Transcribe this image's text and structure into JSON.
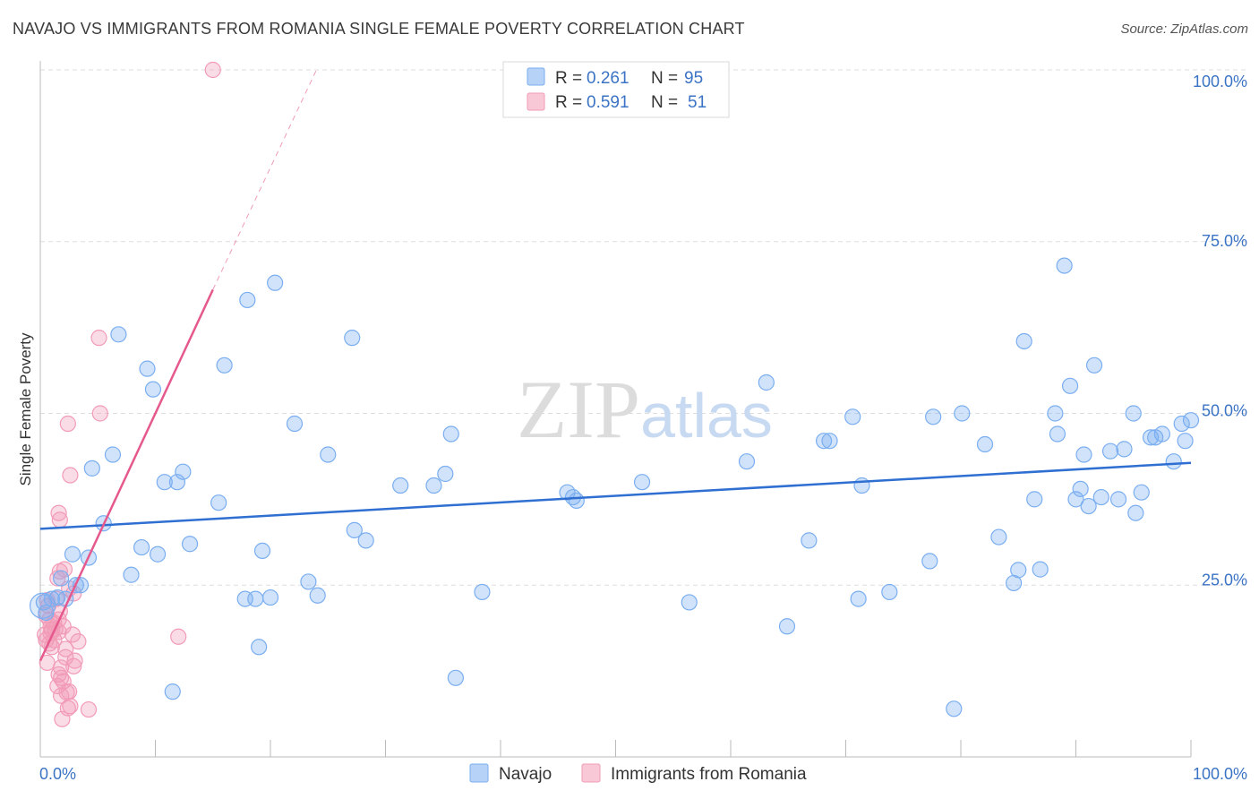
{
  "title": "NAVAJO VS IMMIGRANTS FROM ROMANIA SINGLE FEMALE POVERTY CORRELATION CHART",
  "source": "Source: ZipAtlas.com",
  "watermark": "ZIPatlas",
  "chart_data": {
    "type": "scatter",
    "ylabel": "Single Female Poverty",
    "xlim": [
      0,
      100
    ],
    "ylim": [
      0,
      100
    ],
    "x_tick_labels": [
      "0.0%",
      "100.0%"
    ],
    "y_tick_labels": [
      "25.0%",
      "50.0%",
      "75.0%",
      "100.0%"
    ],
    "y_ticks": [
      25,
      50,
      75,
      100
    ],
    "colors": {
      "navajo": "#7aaef0",
      "romania": "#f29bb6",
      "navajo_line": "#2e6fd1",
      "romania_line": "#e5598d"
    },
    "legend": {
      "navajo": {
        "name": "Navajo",
        "r_label": "R =",
        "r": "0.261",
        "n_label": "N =",
        "n": "95"
      },
      "romania": {
        "name": "Immigrants from Romania",
        "r_label": "R =",
        "r": "0.591",
        "n_label": "N =",
        "n": "51"
      }
    },
    "series": [
      {
        "name": "Navajo",
        "trend": {
          "x": [
            0,
            100
          ],
          "y": [
            33.2,
            42.8
          ]
        },
        "points": [
          [
            0.3,
            22.5
          ],
          [
            0.5,
            21
          ],
          [
            1,
            23
          ],
          [
            1.5,
            23.2
          ],
          [
            1.8,
            26
          ],
          [
            2.2,
            23
          ],
          [
            2.8,
            29.5
          ],
          [
            3.1,
            25
          ],
          [
            3.5,
            25
          ],
          [
            4.2,
            29
          ],
          [
            4.5,
            42
          ],
          [
            5.5,
            34
          ],
          [
            6.3,
            44
          ],
          [
            6.8,
            61.5
          ],
          [
            7.9,
            26.5
          ],
          [
            8.8,
            30.5
          ],
          [
            9.3,
            56.5
          ],
          [
            9.8,
            53.5
          ],
          [
            10.2,
            29.5
          ],
          [
            10.8,
            40
          ],
          [
            11.5,
            9.5
          ],
          [
            11.9,
            40
          ],
          [
            12.4,
            41.5
          ],
          [
            13,
            31
          ],
          [
            15.5,
            37
          ],
          [
            16,
            57
          ],
          [
            17.8,
            23
          ],
          [
            18,
            66.5
          ],
          [
            18.7,
            23
          ],
          [
            19,
            16
          ],
          [
            19.3,
            30
          ],
          [
            20,
            23.2
          ],
          [
            20.4,
            69
          ],
          [
            22.1,
            48.5
          ],
          [
            23.3,
            25.5
          ],
          [
            24.1,
            23.5
          ],
          [
            25,
            44
          ],
          [
            27.1,
            61
          ],
          [
            27.3,
            33
          ],
          [
            28.3,
            31.5
          ],
          [
            31.3,
            39.5
          ],
          [
            34.2,
            39.5
          ],
          [
            35.2,
            41.2
          ],
          [
            35.7,
            47
          ],
          [
            36.1,
            11.5
          ],
          [
            38.4,
            24
          ],
          [
            45.8,
            38.5
          ],
          [
            46.3,
            37.8
          ],
          [
            46.6,
            37.3
          ],
          [
            52.3,
            40
          ],
          [
            56.4,
            22.5
          ],
          [
            61.4,
            43
          ],
          [
            63.1,
            54.5
          ],
          [
            64.9,
            19
          ],
          [
            66.8,
            31.5
          ],
          [
            68.1,
            46
          ],
          [
            68.6,
            46
          ],
          [
            70.6,
            49.5
          ],
          [
            71.1,
            23
          ],
          [
            71.4,
            39.5
          ],
          [
            73.8,
            24
          ],
          [
            77.3,
            28.5
          ],
          [
            77.6,
            49.5
          ],
          [
            79.4,
            7
          ],
          [
            80.1,
            50
          ],
          [
            82.1,
            45.5
          ],
          [
            83.3,
            32
          ],
          [
            84.6,
            25.3
          ],
          [
            85,
            27.2
          ],
          [
            85.5,
            60.5
          ],
          [
            86.4,
            37.5
          ],
          [
            86.9,
            27.3
          ],
          [
            88.2,
            50
          ],
          [
            88.4,
            47
          ],
          [
            89,
            71.5
          ],
          [
            89.5,
            54
          ],
          [
            90,
            37.5
          ],
          [
            90.4,
            39
          ],
          [
            90.7,
            44
          ],
          [
            91.1,
            36.5
          ],
          [
            91.6,
            57
          ],
          [
            92.2,
            37.8
          ],
          [
            93,
            44.5
          ],
          [
            93.7,
            37.5
          ],
          [
            94.2,
            44.8
          ],
          [
            95,
            50
          ],
          [
            95.2,
            35.5
          ],
          [
            95.7,
            38.5
          ],
          [
            96.5,
            46.5
          ],
          [
            96.9,
            46.5
          ],
          [
            97.5,
            47
          ],
          [
            98.5,
            43
          ],
          [
            99.2,
            48.5
          ],
          [
            99.5,
            46
          ],
          [
            100,
            49
          ]
        ]
      },
      {
        "name": "Immigrants from Romania",
        "trend": {
          "x": [
            0,
            15
          ],
          "y": [
            14,
            68
          ]
        },
        "trend_ext": {
          "x": [
            15,
            24
          ],
          "y": [
            68,
            100
          ]
        },
        "points": [
          [
            15,
            100
          ],
          [
            5.1,
            61
          ],
          [
            5.2,
            50
          ],
          [
            2.4,
            48.5
          ],
          [
            2.6,
            41
          ],
          [
            1.6,
            35.5
          ],
          [
            1.7,
            34.5
          ],
          [
            1.7,
            27
          ],
          [
            2.1,
            27.3
          ],
          [
            1.5,
            26
          ],
          [
            2.9,
            23.8
          ],
          [
            2.5,
            24.5
          ],
          [
            1.4,
            23
          ],
          [
            0.6,
            22.8
          ],
          [
            0.7,
            22
          ],
          [
            1.7,
            21.2
          ],
          [
            0.5,
            20.6
          ],
          [
            0.8,
            20
          ],
          [
            1.6,
            20
          ],
          [
            2,
            19
          ],
          [
            1.2,
            19.5
          ],
          [
            0.9,
            19
          ],
          [
            1.3,
            18.6
          ],
          [
            1.6,
            18.2
          ],
          [
            0.9,
            18
          ],
          [
            1,
            18.5
          ],
          [
            0.4,
            17.8
          ],
          [
            0.5,
            17
          ],
          [
            1.2,
            17
          ],
          [
            0.8,
            16.5
          ],
          [
            1,
            16
          ],
          [
            2.2,
            15.7
          ],
          [
            3.3,
            16.8
          ],
          [
            2.2,
            14.5
          ],
          [
            3,
            14
          ],
          [
            2.9,
            13.2
          ],
          [
            0.6,
            13.7
          ],
          [
            1.8,
            13
          ],
          [
            1.8,
            11.5
          ],
          [
            2,
            11
          ],
          [
            1.6,
            12
          ],
          [
            1.5,
            10.3
          ],
          [
            2.3,
            9.4
          ],
          [
            2.5,
            9.5
          ],
          [
            1.8,
            8.9
          ],
          [
            2.4,
            7.1
          ],
          [
            2.6,
            7.4
          ],
          [
            4.2,
            6.9
          ],
          [
            1.9,
            5.5
          ],
          [
            12,
            17.5
          ],
          [
            2.8,
            17.8
          ]
        ]
      }
    ]
  }
}
